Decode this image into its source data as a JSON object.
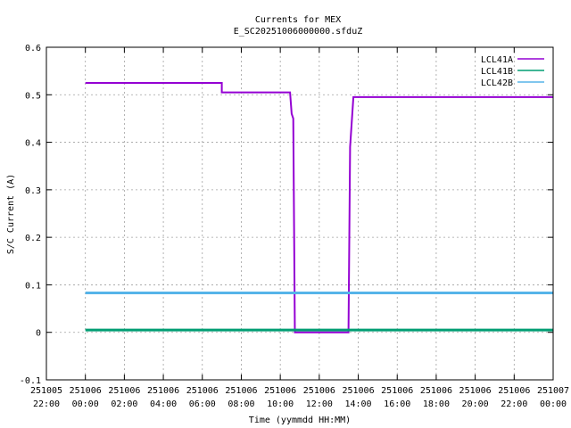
{
  "chart_data": {
    "type": "line",
    "title": "Currents for MEX",
    "subtitle": "E_SC20251006000000.sfduZ",
    "xlabel": "Time (yymmdd HH:MM)",
    "ylabel": "S/C Current (A)",
    "xlim": [
      "2025-10-05 22:00",
      "2025-10-07 00:00"
    ],
    "ylim": [
      -0.1,
      0.6
    ],
    "grid": true,
    "legend_position": "top-right",
    "y_ticks": [
      "-0.1",
      "0",
      "0.1",
      "0.2",
      "0.3",
      "0.4",
      "0.5",
      "0.6"
    ],
    "x_ticks": [
      {
        "date": "251005",
        "time": "22:00"
      },
      {
        "date": "251006",
        "time": "00:00"
      },
      {
        "date": "251006",
        "time": "02:00"
      },
      {
        "date": "251006",
        "time": "04:00"
      },
      {
        "date": "251006",
        "time": "06:00"
      },
      {
        "date": "251006",
        "time": "08:00"
      },
      {
        "date": "251006",
        "time": "10:00"
      },
      {
        "date": "251006",
        "time": "12:00"
      },
      {
        "date": "251006",
        "time": "14:00"
      },
      {
        "date": "251006",
        "time": "16:00"
      },
      {
        "date": "251006",
        "time": "18:00"
      },
      {
        "date": "251006",
        "time": "20:00"
      },
      {
        "date": "251006",
        "time": "22:00"
      },
      {
        "date": "251007",
        "time": "00:00"
      }
    ],
    "series": [
      {
        "name": "LCL41A",
        "color": "#9400d3",
        "x": [
          "00:00",
          "07:00",
          "07:00",
          "10:30",
          "10:35",
          "10:40",
          "10:45",
          "13:30",
          "13:35",
          "13:45",
          "24:00"
        ],
        "y": [
          0.525,
          0.525,
          0.505,
          0.505,
          0.46,
          0.45,
          0.0,
          0.0,
          0.39,
          0.495,
          0.495
        ]
      },
      {
        "name": "LCL41B",
        "color": "#009e73",
        "x": [
          "00:00",
          "24:00"
        ],
        "y": [
          0.005,
          0.005
        ]
      },
      {
        "name": "LCL42B",
        "color": "#56b4e9",
        "x": [
          "00:00",
          "24:00"
        ],
        "y": [
          0.083,
          0.083
        ]
      }
    ]
  }
}
